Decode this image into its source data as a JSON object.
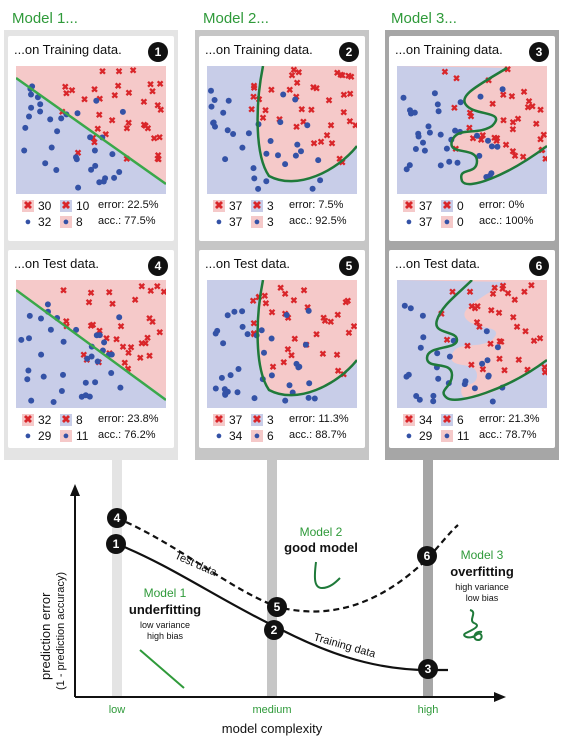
{
  "models": [
    {
      "title": "Model 1...",
      "train": {
        "title": "...on Training data.",
        "num": "1",
        "tp": "30",
        "fp": "10",
        "tn": "32",
        "fn": "8",
        "error": "error: 22.5%",
        "acc": "acc.: 77.5%"
      },
      "test": {
        "title": "...on Test data.",
        "num": "4",
        "tp": "32",
        "fp": "8",
        "tn": "29",
        "fn": "11",
        "error": "error: 23.8%",
        "acc": "acc.: 76.2%"
      }
    },
    {
      "title": "Model 2...",
      "train": {
        "title": "...on Training data.",
        "num": "2",
        "tp": "37",
        "fp": "3",
        "tn": "37",
        "fn": "3",
        "error": "error: 7.5%",
        "acc": "acc.: 92.5%"
      },
      "test": {
        "title": "...on Test data.",
        "num": "5",
        "tp": "37",
        "fp": "3",
        "tn": "34",
        "fn": "6",
        "error": "error: 11.3%",
        "acc": "acc.: 88.7%"
      }
    },
    {
      "title": "Model 3...",
      "train": {
        "title": "...on Training data.",
        "num": "3",
        "tp": "37",
        "fp": "0",
        "tn": "37",
        "fn": "0",
        "error": "error: 0%",
        "acc": "acc.: 100%"
      },
      "test": {
        "title": "...on Test data.",
        "num": "6",
        "tp": "34",
        "fp": "6",
        "tn": "29",
        "fn": "11",
        "error": "error: 21.3%",
        "acc": "acc.: 78.7%"
      }
    }
  ],
  "curve": {
    "y_label": "prediction error",
    "y_sublabel": "(1 - prediction accuracy)",
    "x_label": "model complexity",
    "x_ticks": [
      "low",
      "medium",
      "high"
    ],
    "test_label": "Test data",
    "train_label": "Training data",
    "m1_name": "Model 1",
    "m1_desc": "underfitting",
    "m1_sub1": "low variance",
    "m1_sub2": "high bias",
    "m2_name": "Model 2",
    "m2_desc": "good model",
    "m3_name": "Model 3",
    "m3_desc": "overfitting",
    "m3_sub1": "high variance",
    "m3_sub2": "low bias",
    "markers": [
      "1",
      "2",
      "3",
      "4",
      "5",
      "6"
    ]
  },
  "colors": {
    "green": "#2f9a3a",
    "boundary": "#1f7a3a",
    "red_region": "#f5c9c9",
    "blue_region": "#c8cde8",
    "cross": "#d9262a",
    "dot": "#3452a6",
    "col1": "#e4e4e4",
    "col2": "#c6c6c6",
    "col3": "#a6a6a6"
  }
}
